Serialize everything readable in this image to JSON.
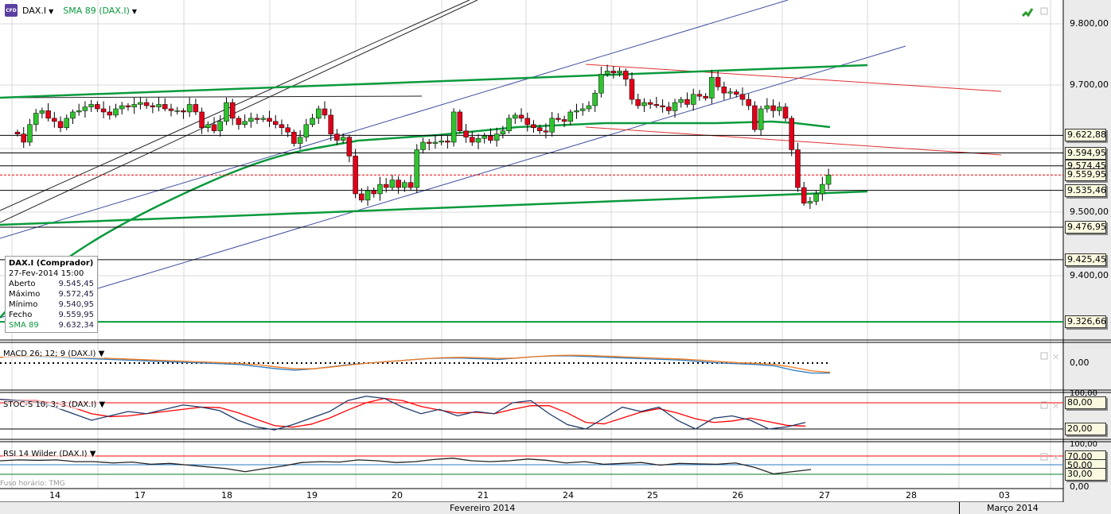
{
  "header": {
    "symbol": "DAX.I",
    "indicator": "SMA 89 (DAX.I)"
  },
  "info_box": {
    "title": "DAX.I (Comprador)",
    "datetime": "27-Fev-2014 15:00",
    "rows": [
      {
        "label": "Aberto",
        "value": "9.545,45"
      },
      {
        "label": "Máximo",
        "value": "9.572,45"
      },
      {
        "label": "Mínimo",
        "value": "9.540,95"
      },
      {
        "label": "Fecho",
        "value": "9.559,95"
      },
      {
        "label": "SMA 89",
        "value": "9.632,34"
      }
    ]
  },
  "panels": {
    "macd": "MACD 26; 12; 9 (DAX.I)",
    "stoc": "STOC-S 10; 3; 3 (DAX.I)",
    "rsi": "RSI 14 Wilder (DAX.I)",
    "timezone": "Fuso horário: TMG"
  },
  "colors": {
    "up": "#2fc42f",
    "down": "#e0001a",
    "sma": "#0a9a3c",
    "stoch_k": "#1f3a6a",
    "stoch_d": "#ff0000"
  },
  "chart_data": {
    "type": "candlestick",
    "title": "DAX.I",
    "y_ticks": [
      "9.800,00",
      "9.700,00",
      "9.500,00",
      "9.400,00"
    ],
    "y_tick_values": [
      9800,
      9700,
      9500,
      9400
    ],
    "levels": [
      {
        "label": "9.622,88",
        "value": 9622.88
      },
      {
        "label": "9.594,95",
        "value": 9594.95
      },
      {
        "label": "9.574,45",
        "value": 9574.45
      },
      {
        "label": "9.559,95",
        "value": 9559.95
      },
      {
        "label": "9.535,46",
        "value": 9535.46
      },
      {
        "label": "9.476,95",
        "value": 9476.95
      },
      {
        "label": "9.425,45",
        "value": 9425.45
      },
      {
        "label": "9.326,66",
        "value": 9326.66
      }
    ],
    "x_dates": [
      "14",
      "17",
      "18",
      "19",
      "20",
      "21",
      "24",
      "25",
      "26",
      "27",
      "28",
      "03"
    ],
    "months": [
      "Fevereiro 2014",
      "Março 2014"
    ],
    "closes": [
      9625,
      9612,
      9640,
      9658,
      9662,
      9650,
      9645,
      9635,
      9650,
      9660,
      9662,
      9668,
      9672,
      9665,
      9660,
      9655,
      9665,
      9670,
      9668,
      9672,
      9675,
      9670,
      9668,
      9672,
      9665,
      9662,
      9662,
      9660,
      9672,
      9660,
      9635,
      9640,
      9630,
      9645,
      9675,
      9650,
      9640,
      9645,
      9650,
      9648,
      9650,
      9645,
      9640,
      9635,
      9628,
      9610,
      9620,
      9640,
      9650,
      9665,
      9655,
      9625,
      9615,
      9620,
      9590,
      9530,
      9520,
      9535,
      9530,
      9545,
      9540,
      9552,
      9540,
      9548,
      9540,
      9600,
      9612,
      9610,
      9612,
      9614,
      9612,
      9660,
      9630,
      9620,
      9612,
      9618,
      9622,
      9615,
      9625,
      9630,
      9650,
      9655,
      9650,
      9640,
      9635,
      9630,
      9628,
      9650,
      9648,
      9645,
      9660,
      9662,
      9665,
      9670,
      9690,
      9720,
      9725,
      9722,
      9725,
      9712,
      9680,
      9670,
      9675,
      9672,
      9670,
      9668,
      9662,
      9675,
      9680,
      9672,
      9688,
      9685,
      9682,
      9715,
      9700,
      9690,
      9692,
      9688,
      9680,
      9670,
      9632,
      9665,
      9670,
      9662,
      9668,
      9650,
      9600,
      9540,
      9515,
      9518,
      9530,
      9545,
      9560
    ],
    "macd": {
      "zero_label": "0,00",
      "values": [
        8,
        9,
        9,
        8,
        7,
        6,
        5,
        4,
        3,
        2,
        1,
        0,
        -1,
        -2,
        -5,
        -8,
        -10,
        -8,
        -5,
        -2,
        0,
        2,
        4,
        6,
        7,
        7,
        6,
        5,
        7,
        9,
        10,
        10,
        9,
        8,
        7,
        6,
        5,
        4,
        2,
        0,
        -1,
        -2,
        -4,
        -10,
        -14,
        -14
      ]
    },
    "stoch": {
      "ticks": [
        "100,00",
        "80,00",
        "20,00"
      ],
      "k": [
        88,
        85,
        82,
        70,
        55,
        40,
        50,
        60,
        55,
        65,
        75,
        70,
        62,
        40,
        25,
        18,
        30,
        45,
        60,
        85,
        95,
        90,
        70,
        55,
        65,
        50,
        60,
        55,
        80,
        85,
        55,
        30,
        20,
        45,
        70,
        60,
        70,
        40,
        20,
        45,
        50,
        40,
        20,
        25,
        35
      ]
    },
    "rsi": {
      "ticks": [
        "100,00",
        "70,00",
        "50,00",
        "30,00",
        "0,00"
      ],
      "values": [
        60,
        62,
        61,
        62,
        58,
        58,
        55,
        57,
        52,
        54,
        50,
        46,
        42,
        35,
        42,
        48,
        56,
        58,
        57,
        62,
        60,
        56,
        58,
        63,
        66,
        60,
        58,
        60,
        64,
        61,
        55,
        58,
        52,
        54,
        56,
        50,
        54,
        53,
        52,
        55,
        45,
        30,
        35,
        40
      ]
    }
  }
}
